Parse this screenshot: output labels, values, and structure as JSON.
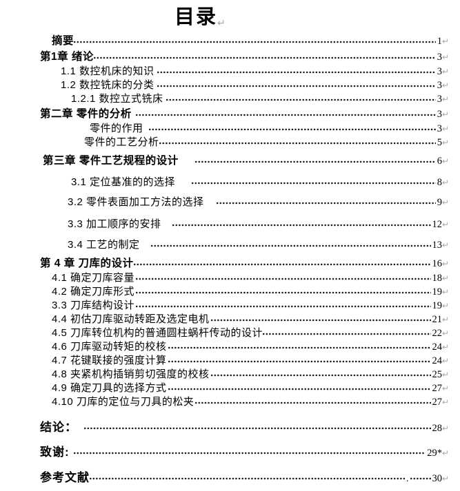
{
  "document": {
    "title": "目录",
    "pilcrow_mark": "↵"
  },
  "toc": {
    "entries": [
      {
        "label": "摘要",
        "page": "1",
        "cls": "chapter",
        "indent": 75,
        "gap": 0,
        "mt": 0
      },
      {
        "label": "第1章 绪论",
        "page": "3",
        "cls": "chapter",
        "indent": 58,
        "gap": 0,
        "mt": 3
      },
      {
        "label": "1.1 数控机床的知识",
        "page": "3",
        "cls": "normal",
        "indent": 88,
        "gap": 4,
        "mt": 1
      },
      {
        "label": "1.2 数控铣床的分类",
        "page": "3",
        "cls": "normal",
        "indent": 88,
        "gap": 4,
        "mt": 0
      },
      {
        "label": "1.2.1 数控立式铣床",
        "page": "3",
        "cls": "normal",
        "indent": 103,
        "gap": 4,
        "mt": 0
      },
      {
        "label": "第二章  零件的分析",
        "page": "3",
        "cls": "chapter",
        "indent": 58,
        "gap": 6,
        "mt": 2
      },
      {
        "label": "零件的作用",
        "page": "3",
        "cls": "normal",
        "indent": 130,
        "gap": 8,
        "mt": 1
      },
      {
        "label": "零件的工艺分析",
        "page": "5",
        "cls": "normal",
        "indent": 122,
        "gap": 0,
        "mt": 0
      },
      {
        "label": "第三章  零件工艺规程的设计",
        "page": "6",
        "cls": "chapter",
        "indent": 62,
        "gap": 24,
        "mt": 7
      },
      {
        "label": "3.1 定位基准的的选择",
        "page": "8",
        "cls": "normal",
        "indent": 103,
        "gap": 24,
        "mt": 11
      },
      {
        "label": "3.2 零件表面加工方法的选择",
        "page": "9",
        "cls": "normal",
        "indent": 98,
        "gap": 18,
        "mt": 9
      },
      {
        "label": "3.3 加工顺序的安排",
        "page": "12",
        "cls": "normal",
        "indent": 98,
        "gap": 16,
        "mt": 12
      },
      {
        "label": "3.4 工艺的制定",
        "page": "13",
        "cls": "normal",
        "indent": 98,
        "gap": 16,
        "mt": 10
      },
      {
        "label": "第 4 章 刀库的设计",
        "page": "16",
        "cls": "chapter",
        "indent": 58,
        "gap": 0,
        "mt": 7
      },
      {
        "label": "4.1 确定刀库容量",
        "page": "18",
        "cls": "normal",
        "indent": 75,
        "gap": 2,
        "mt": 1
      },
      {
        "label": "4.2 确定刀库形式",
        "page": "19",
        "cls": "normal",
        "indent": 75,
        "gap": 2,
        "mt": 0
      },
      {
        "label": "3.3 刀库结构设计",
        "page": "19",
        "cls": "normal",
        "indent": 75,
        "gap": 2,
        "mt": 0
      },
      {
        "label": "4.4 初估刀库驱动转距及选定电机",
        "page": "21",
        "cls": "normal",
        "indent": 75,
        "gap": 2,
        "mt": 0
      },
      {
        "label": "4.5 刀库转位机构的普通圆柱蜗杆传动的设计",
        "page": "22",
        "cls": "normal",
        "indent": 75,
        "gap": 0,
        "mt": 0
      },
      {
        "label": "4.6 刀库驱动转矩的校核",
        "page": "24",
        "cls": "normal",
        "indent": 75,
        "gap": 2,
        "mt": 0
      },
      {
        "label": "4.7 花键联接的强度计算",
        "page": "24",
        "cls": "normal",
        "indent": 75,
        "gap": 2,
        "mt": 0
      },
      {
        "label": "4.8 夹紧机构插销剪切强度的校核",
        "page": "25",
        "cls": "normal",
        "indent": 75,
        "gap": 2,
        "mt": 0
      },
      {
        "label": "4.9 确定刀具的选择方式",
        "page": "27",
        "cls": "normal",
        "indent": 75,
        "gap": 2,
        "mt": 0
      },
      {
        "label": "4.10 刀库的定位与刀具的松夹",
        "page": "27",
        "cls": "normal",
        "indent": 75,
        "gap": 2,
        "mt": 0
      },
      {
        "label": "结论：",
        "page": "28",
        "cls": "big",
        "indent": 58,
        "gap": 10,
        "mt": 17
      },
      {
        "label": "致谢:",
        "page": "29*",
        "cls": "big",
        "indent": 58,
        "gap": 6,
        "mt": 16
      },
      {
        "label": "参考文献",
        "page": "30",
        "cls": "big",
        "indent": 58,
        "gap": 0,
        "mt": 17,
        "leader_mid": "."
      }
    ]
  }
}
